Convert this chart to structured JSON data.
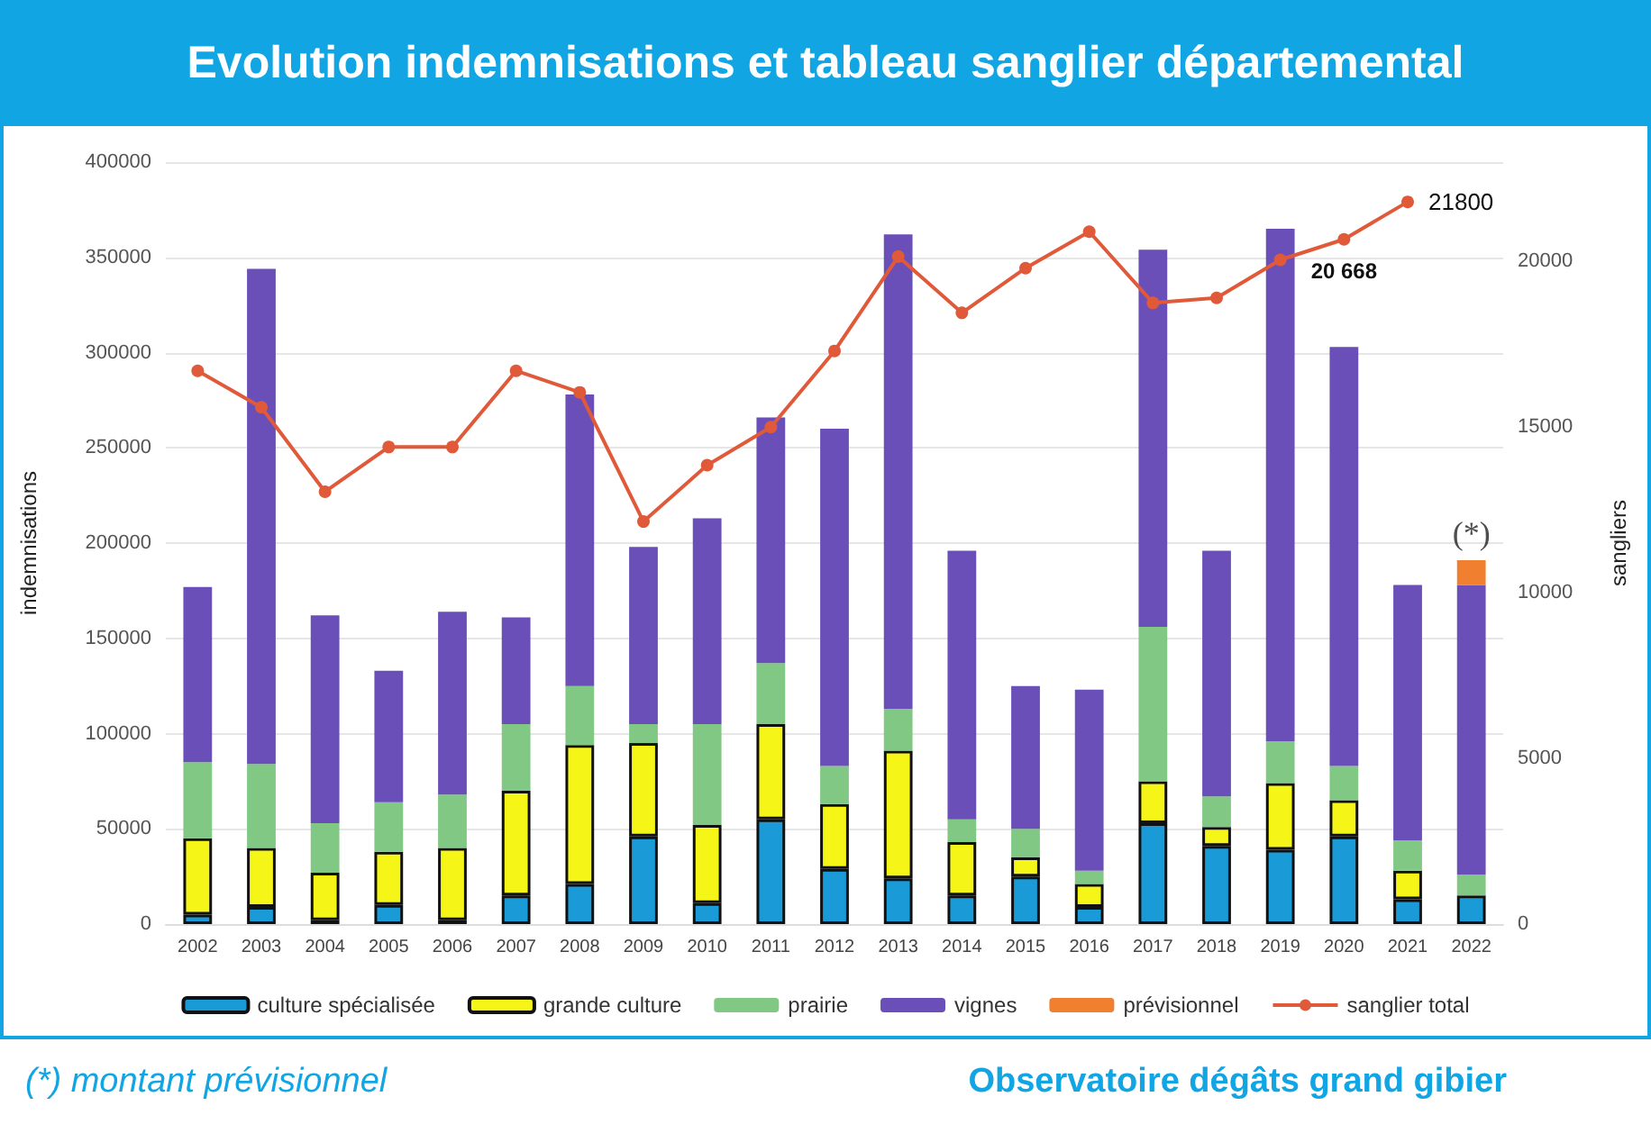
{
  "chart_data": {
    "type": "bar",
    "title": "Evolution indemnisations et tableau sanglier départemental",
    "ylabel": "indemnisations",
    "y2label": "sangliers",
    "stacked": true,
    "grid": "y",
    "legend": "bottom",
    "categories": [
      "2002",
      "2003",
      "2004",
      "2005",
      "2006",
      "2007",
      "2008",
      "2009",
      "2010",
      "2011",
      "2012",
      "2013",
      "2014",
      "2015",
      "2016",
      "2017",
      "2018",
      "2019",
      "2020",
      "2021",
      "2022"
    ],
    "series": [
      {
        "name": "culture spécialisée",
        "color": "#1a9ad6",
        "values": [
          5000,
          9000,
          2000,
          10000,
          2000,
          15000,
          21000,
          46000,
          11000,
          55000,
          29000,
          24000,
          15000,
          25000,
          9000,
          53000,
          41000,
          39000,
          46000,
          13000,
          15000
        ]
      },
      {
        "name": "grande culture",
        "color": "#f5f518",
        "values": [
          40000,
          31000,
          25000,
          28000,
          38000,
          55000,
          73000,
          49000,
          41000,
          50000,
          34000,
          67000,
          28000,
          10000,
          12000,
          22000,
          10000,
          35000,
          19000,
          15000,
          null
        ]
      },
      {
        "name": "prairie",
        "color": "#80c883",
        "values": [
          40000,
          44000,
          26000,
          26000,
          28000,
          35000,
          31000,
          10000,
          53000,
          32000,
          20000,
          22000,
          12000,
          15000,
          7000,
          81000,
          16000,
          22000,
          18000,
          16000,
          11000
        ]
      },
      {
        "name": "vignes",
        "color": "#6a4fb8",
        "values": [
          92000,
          260000,
          109000,
          69000,
          96000,
          56000,
          153000,
          93000,
          108000,
          129000,
          177000,
          249000,
          141000,
          75000,
          95000,
          198000,
          129000,
          269000,
          220000,
          134000,
          152000
        ]
      },
      {
        "name": "prévisionnel",
        "color": "#f08030",
        "values": [
          null,
          null,
          null,
          null,
          null,
          null,
          null,
          null,
          null,
          null,
          null,
          null,
          null,
          null,
          null,
          null,
          null,
          null,
          null,
          null,
          13000
        ]
      },
      {
        "name": "sanglier total",
        "type": "line",
        "axis": "y2",
        "color": "#e05a3a",
        "marker": "circle",
        "values": [
          16700,
          15600,
          13050,
          14400,
          14400,
          16700,
          16050,
          12150,
          13850,
          15000,
          17300,
          20150,
          18450,
          19800,
          20900,
          18750,
          18900,
          20050,
          20668,
          21800,
          null
        ],
        "value_labels": [
          null,
          null,
          null,
          null,
          null,
          null,
          null,
          null,
          null,
          null,
          null,
          null,
          null,
          null,
          null,
          null,
          null,
          null,
          "20 668",
          "21800",
          null
        ]
      }
    ],
    "ylim": [
      0,
      400000
    ],
    "yticks": [
      0,
      50000,
      100000,
      150000,
      200000,
      250000,
      300000,
      350000,
      400000
    ],
    "y2lim": [
      0,
      23000
    ],
    "y2ticks": [
      0,
      5000,
      10000,
      15000,
      20000
    ],
    "annotations": [
      {
        "text": "(*)",
        "x": "2022",
        "y": 191000
      },
      "(*) montant prévisionnel",
      "Observatoire dégâts grand gibier"
    ]
  }
}
